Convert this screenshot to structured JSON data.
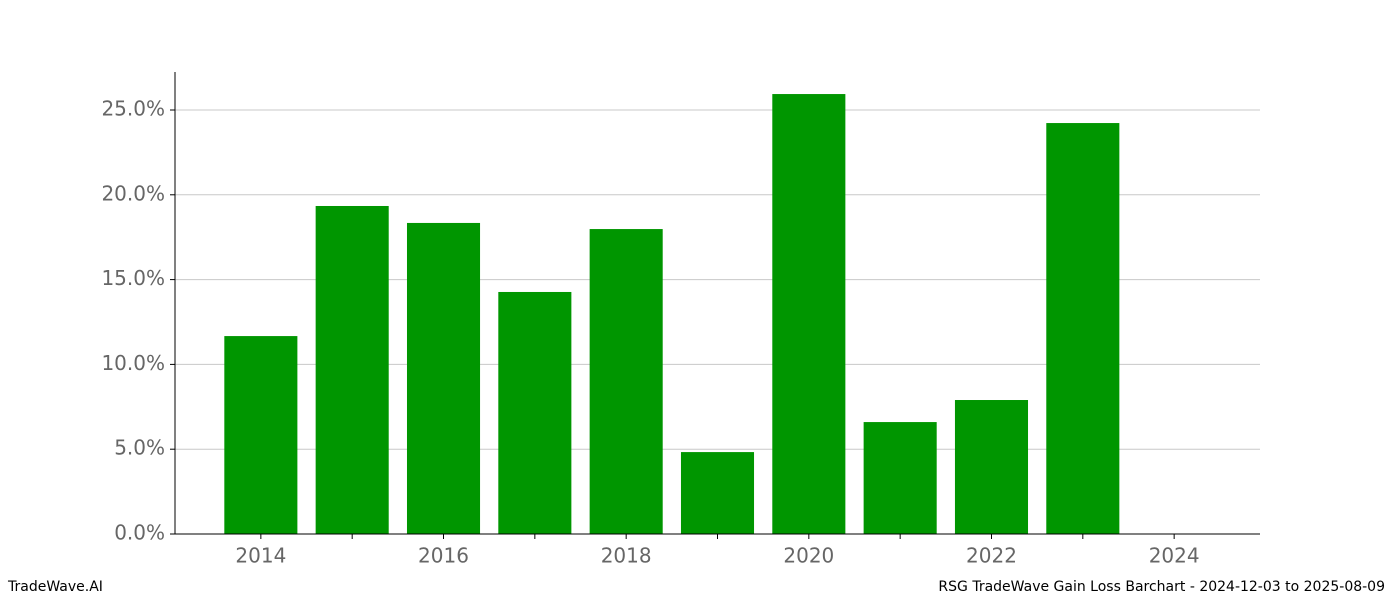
{
  "chart_data": {
    "type": "bar",
    "x": [
      2014,
      2015,
      2016,
      2017,
      2018,
      2019,
      2020,
      2021,
      2022,
      2023,
      2024
    ],
    "values": [
      11.67,
      19.34,
      18.34,
      14.27,
      17.98,
      4.83,
      25.94,
      6.6,
      7.9,
      24.23,
      0
    ],
    "color": "#009600",
    "bar_width": 0.8,
    "xlim": [
      2013.06,
      2024.94
    ],
    "xticks": [
      2014,
      2016,
      2018,
      2020,
      2022,
      2024
    ],
    "xminor_ticks": [
      2015,
      2017,
      2019,
      2021,
      2023
    ],
    "ylim": [
      0,
      27.24
    ],
    "yticks": [
      {
        "value": 0,
        "label": "0.0%"
      },
      {
        "value": 5,
        "label": "5.0%"
      },
      {
        "value": 10,
        "label": "10.0%"
      },
      {
        "value": 15,
        "label": "15.0%"
      },
      {
        "value": 20,
        "label": "20.0%"
      },
      {
        "value": 25,
        "label": "25.0%"
      }
    ],
    "grid": true
  },
  "footer": {
    "left": "TradeWave.AI",
    "right": "RSG TradeWave Gain Loss Barchart - 2024-12-03 to 2025-08-09"
  }
}
